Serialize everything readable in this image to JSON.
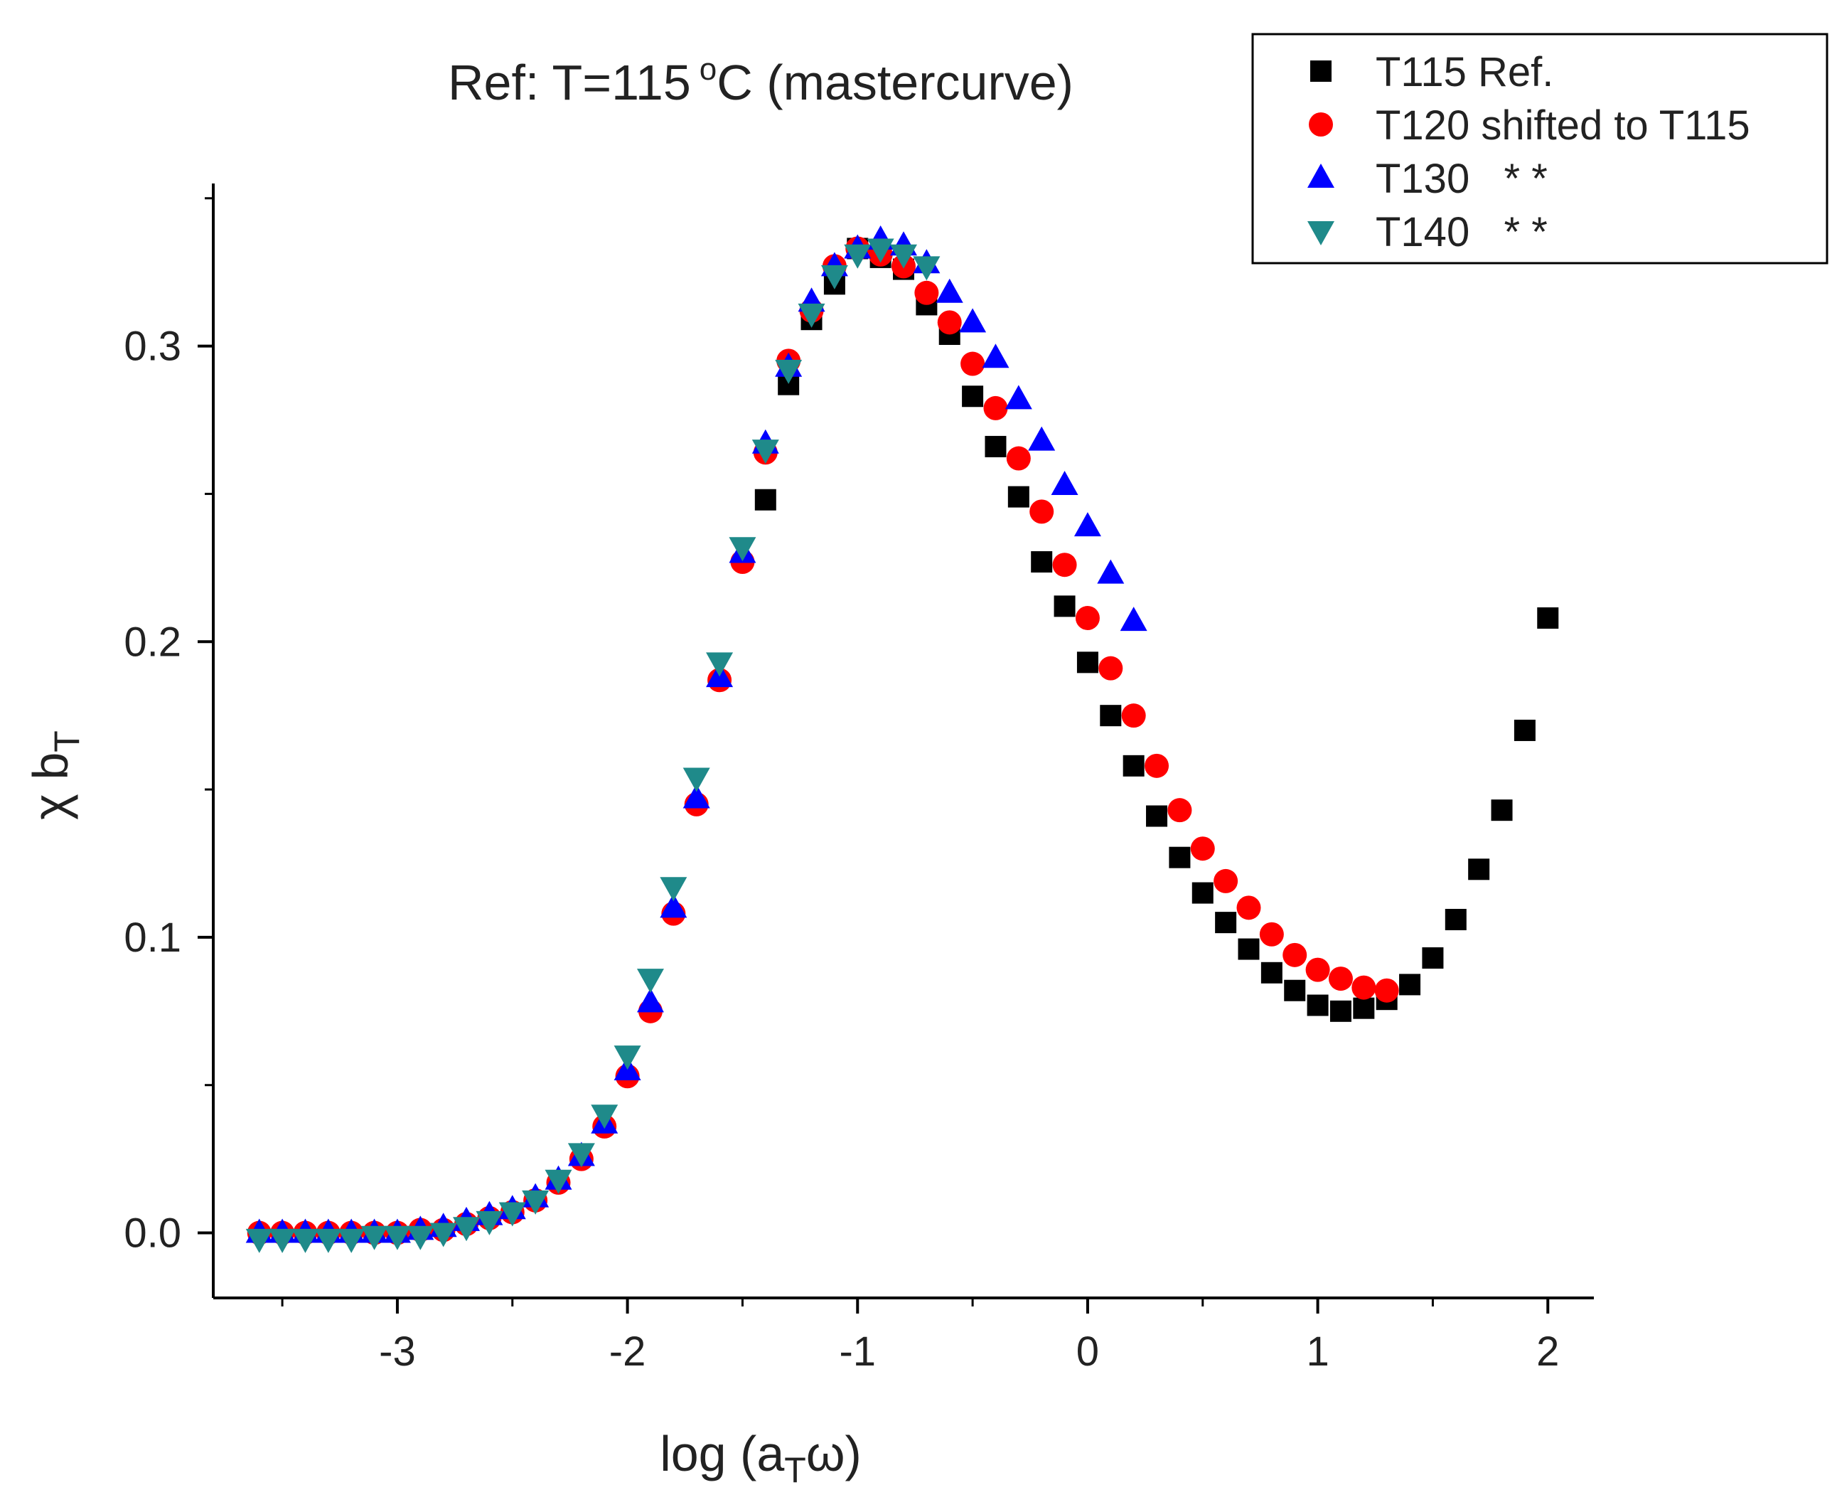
{
  "chart_data": {
    "type": "scatter",
    "title": "Ref: T=115",
    "title_unit_sup": "o",
    "title_unit": "C (mastercurve)",
    "xlabel": {
      "prefix": "log (a",
      "sub": "T",
      "suffix": "ω)"
    },
    "ylabel": {
      "prefix": "χ b",
      "sub": "T"
    },
    "xlim": [
      -3.8,
      2.2
    ],
    "ylim": [
      -0.022,
      0.355
    ],
    "x_ticks": [
      -3,
      -2,
      -1,
      0,
      1,
      2
    ],
    "x_tick_labels": [
      "-3",
      "-2",
      "-1",
      "0",
      "1",
      "2"
    ],
    "x_minor_ticks": [
      -3.5,
      -2.5,
      -1.5,
      -0.5,
      0.5,
      1.5
    ],
    "y_ticks": [
      0.0,
      0.1,
      0.2,
      0.3
    ],
    "y_tick_labels": [
      "0.0",
      "0.1",
      "0.2",
      "0.3"
    ],
    "y_minor_ticks": [
      0.05,
      0.15,
      0.25,
      0.35
    ],
    "legend_position": "top-right",
    "series": [
      {
        "name": "T115 Ref.",
        "marker": "square",
        "color": "#000000",
        "x": [
          -1.4,
          -1.3,
          -1.2,
          -1.1,
          -1.0,
          -0.9,
          -0.8,
          -0.7,
          -0.6,
          -0.5,
          -0.4,
          -0.3,
          -0.2,
          -0.1,
          0.0,
          0.1,
          0.2,
          0.3,
          0.4,
          0.5,
          0.6,
          0.7,
          0.8,
          0.9,
          1.0,
          1.1,
          1.2,
          1.3,
          1.4,
          1.5,
          1.6,
          1.7,
          1.8,
          1.9,
          2.0
        ],
        "y": [
          0.248,
          0.287,
          0.309,
          0.321,
          0.333,
          0.33,
          0.326,
          0.314,
          0.304,
          0.283,
          0.266,
          0.249,
          0.227,
          0.212,
          0.193,
          0.175,
          0.158,
          0.141,
          0.127,
          0.115,
          0.105,
          0.096,
          0.088,
          0.082,
          0.077,
          0.075,
          0.076,
          0.079,
          0.084,
          0.093,
          0.106,
          0.123,
          0.143,
          0.17,
          0.208
        ]
      },
      {
        "name": "T120 shifted to T115",
        "marker": "circle",
        "color": "#ff0000",
        "x": [
          -3.6,
          -3.5,
          -3.4,
          -3.3,
          -3.2,
          -3.1,
          -3.0,
          -2.9,
          -2.8,
          -2.7,
          -2.6,
          -2.5,
          -2.4,
          -2.3,
          -2.2,
          -2.1,
          -2.0,
          -1.9,
          -1.8,
          -1.7,
          -1.6,
          -1.5,
          -1.4,
          -1.3,
          -1.2,
          -1.1,
          -1.0,
          -0.9,
          -0.8,
          -0.7,
          -0.6,
          -0.5,
          -0.4,
          -0.3,
          -0.2,
          -0.1,
          0.0,
          0.1,
          0.2,
          0.3,
          0.4,
          0.5,
          0.6,
          0.7,
          0.8,
          0.9,
          1.0,
          1.1,
          1.2,
          1.3
        ],
        "y": [
          0.0,
          0.0,
          0.0,
          0.0,
          0.0,
          0.0,
          0.0,
          0.001,
          0.001,
          0.003,
          0.005,
          0.007,
          0.011,
          0.017,
          0.025,
          0.036,
          0.053,
          0.075,
          0.108,
          0.145,
          0.187,
          0.227,
          0.264,
          0.295,
          0.312,
          0.327,
          0.333,
          0.331,
          0.327,
          0.318,
          0.308,
          0.294,
          0.279,
          0.262,
          0.244,
          0.226,
          0.208,
          0.191,
          0.175,
          0.158,
          0.143,
          0.13,
          0.119,
          0.11,
          0.101,
          0.094,
          0.089,
          0.086,
          0.083,
          0.082
        ]
      },
      {
        "name": "T130",
        "legend_suffix": "* *",
        "marker": "triangle-up",
        "color": "#0000ff",
        "x": [
          -3.6,
          -3.5,
          -3.4,
          -3.3,
          -3.2,
          -3.1,
          -3.0,
          -2.9,
          -2.8,
          -2.7,
          -2.6,
          -2.5,
          -2.4,
          -2.3,
          -2.2,
          -2.1,
          -2.0,
          -1.9,
          -1.8,
          -1.7,
          -1.6,
          -1.5,
          -1.4,
          -1.3,
          -1.2,
          -1.1,
          -1.0,
          -0.9,
          -0.8,
          -0.7,
          -0.6,
          -0.5,
          -0.4,
          -0.3,
          -0.2,
          -0.1,
          0.0,
          0.1,
          0.2
        ],
        "y": [
          0.0,
          0.0,
          0.0,
          0.0,
          0.0,
          0.0,
          0.0,
          0.001,
          0.002,
          0.004,
          0.006,
          0.008,
          0.012,
          0.018,
          0.026,
          0.037,
          0.055,
          0.078,
          0.11,
          0.147,
          0.188,
          0.23,
          0.267,
          0.293,
          0.315,
          0.327,
          0.333,
          0.336,
          0.334,
          0.328,
          0.318,
          0.308,
          0.296,
          0.282,
          0.268,
          0.253,
          0.239,
          0.223,
          0.207
        ]
      },
      {
        "name": "T140",
        "legend_suffix": "* *",
        "marker": "triangle-down",
        "color": "#1f8a8a",
        "x": [
          -3.6,
          -3.5,
          -3.4,
          -3.3,
          -3.2,
          -3.1,
          -3.0,
          -2.9,
          -2.8,
          -2.7,
          -2.6,
          -2.5,
          -2.4,
          -2.3,
          -2.2,
          -2.1,
          -2.0,
          -1.9,
          -1.8,
          -1.7,
          -1.6,
          -1.5,
          -1.4,
          -1.3,
          -1.2,
          -1.1,
          -1.0,
          -0.9,
          -0.8,
          -0.7
        ],
        "y": [
          -0.002,
          -0.002,
          -0.002,
          -0.002,
          -0.002,
          -0.001,
          -0.001,
          -0.001,
          0.0,
          0.002,
          0.004,
          0.007,
          0.011,
          0.018,
          0.027,
          0.04,
          0.06,
          0.086,
          0.117,
          0.154,
          0.193,
          0.232,
          0.265,
          0.292,
          0.311,
          0.324,
          0.331,
          0.333,
          0.331,
          0.327
        ]
      }
    ]
  }
}
